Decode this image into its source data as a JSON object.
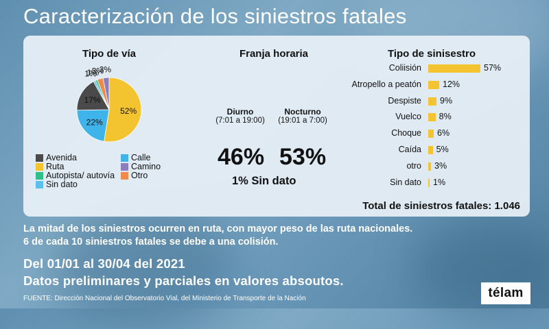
{
  "title": "Caracterización de los siniestros fatales",
  "colors": {
    "avenida": "#4a4a4a",
    "ruta": "#f4c430",
    "autopista": "#2ebf8a",
    "sin_dato": "#3fb4ea",
    "calle": "#5bc0eb",
    "camino": "#8b7fbf",
    "otro": "#f08a4b",
    "bar": "#f4c430"
  },
  "chart_data": [
    {
      "type": "pie",
      "title": "Tipo de vía",
      "slices": [
        {
          "label": "Ruta",
          "value": 52,
          "color": "#f4c430",
          "text": "52%"
        },
        {
          "label": "Calle",
          "value": 22,
          "color": "#3fb4ea",
          "text": "22%"
        },
        {
          "label": "Avenida",
          "value": 17,
          "color": "#4a4a4a",
          "text": "17%"
        },
        {
          "label": "Sin dato",
          "value": 1,
          "color": "#5bc0eb",
          "text": "1%"
        },
        {
          "label": "Autopista/ autovía",
          "value": 1,
          "color": "#2ebf8a",
          "text": "1%"
        },
        {
          "label": "Otro",
          "value": 3,
          "color": "#f08a4b",
          "text": "3%"
        },
        {
          "label": "Camino",
          "value": 3,
          "color": "#8b7fbf",
          "text": "3%"
        }
      ],
      "legend": [
        {
          "label": "Avenida",
          "color": "#4a4a4a"
        },
        {
          "label": "Calle",
          "color": "#3fb4ea"
        },
        {
          "label": "Ruta",
          "color": "#f4c430"
        },
        {
          "label": "Camino",
          "color": "#8b7fbf"
        },
        {
          "label": "Autopista/ autovía",
          "color": "#2ebf8a"
        },
        {
          "label": "Otro",
          "color": "#f08a4b"
        },
        {
          "label": "Sin dato",
          "color": "#5bc0eb"
        }
      ]
    },
    {
      "type": "table",
      "title": "Franja horaria",
      "columns": [
        {
          "label": "Diurno",
          "range": "(7:01 a 19:00)",
          "value": 46,
          "text": "46%"
        },
        {
          "label": "Nocturno",
          "range": "(19:01 a 7:00)",
          "value": 53,
          "text": "53%"
        }
      ],
      "no_data": "1% Sin dato"
    },
    {
      "type": "bar",
      "orientation": "horizontal",
      "title": "Tipo de sinisestro",
      "categories": [
        "Coliisión",
        "Atropello a peatón",
        "Despiste",
        "Vuelco",
        "Choque",
        "Caída",
        "otro",
        "Sin dato"
      ],
      "values": [
        57,
        12,
        9,
        8,
        6,
        5,
        3,
        1
      ],
      "value_labels": [
        "57%",
        "12%",
        "9%",
        "8%",
        "6%",
        "5%",
        "3%",
        "1%"
      ],
      "xlim": [
        0,
        57
      ]
    }
  ],
  "total": "Total de siniestros fatales: 1.046",
  "summary": {
    "line1": "La mitad de los siniestros ocurren en ruta, con mayor peso de las ruta nacionales.",
    "line2": "6 de cada 10 siniestros fatales se debe a una colisión."
  },
  "dates": {
    "line1": "Del 01/01 al 30/04 del 2021",
    "line2": "Datos preliminares y parciales en valores absoutos."
  },
  "source": "FUENTE: Dirección Nacional del Observatorio Vial, del Ministerio de Transporte de la Nación",
  "logo": "télam"
}
